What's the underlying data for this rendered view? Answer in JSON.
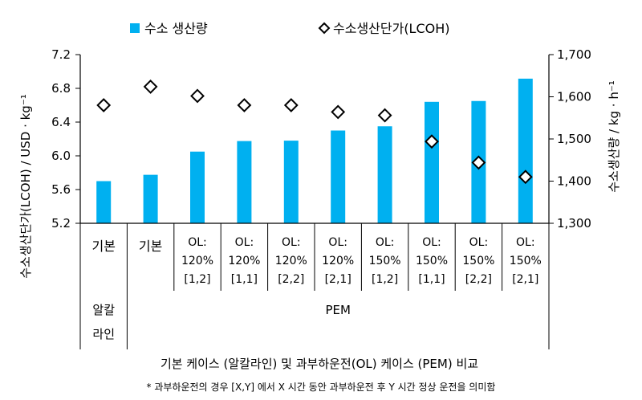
{
  "chart_data": {
    "type": "bar",
    "legend": {
      "bar_label": "수소 생산량",
      "marker_label": "수소생산단가(LCOH)",
      "position": "top"
    },
    "categories": [
      {
        "lines": [
          "기본"
        ]
      },
      {
        "lines": [
          "기본"
        ]
      },
      {
        "lines": [
          "OL:",
          "120%",
          "[1,2]"
        ]
      },
      {
        "lines": [
          "OL:",
          "120%",
          "[1,1]"
        ]
      },
      {
        "lines": [
          "OL:",
          "120%",
          "[2,2]"
        ]
      },
      {
        "lines": [
          "OL:",
          "120%",
          "[2,1]"
        ]
      },
      {
        "lines": [
          "OL:",
          "150%",
          "[1,2]"
        ]
      },
      {
        "lines": [
          "OL:",
          "150%",
          "[1,1]"
        ]
      },
      {
        "lines": [
          "OL:",
          "150%",
          "[2,2]"
        ]
      },
      {
        "lines": [
          "OL:",
          "150%",
          "[2,1]"
        ]
      }
    ],
    "groups": [
      {
        "label_lines": [
          "알칼",
          "라인"
        ],
        "span": [
          0,
          0
        ]
      },
      {
        "label_lines": [
          "PEM"
        ],
        "span": [
          1,
          9
        ]
      }
    ],
    "series": [
      {
        "name": "수소 생산량",
        "kind": "bar",
        "axis": "right",
        "color": "#00B0F0",
        "values": [
          1400,
          1415,
          1470,
          1495,
          1496,
          1520,
          1530,
          1588,
          1590,
          1643
        ]
      },
      {
        "name": "수소생산단가(LCOH)",
        "kind": "marker",
        "marker": "diamond",
        "axis": "left",
        "values": [
          6.6,
          6.82,
          6.71,
          6.6,
          6.6,
          6.52,
          6.48,
          6.17,
          5.92,
          5.75
        ]
      }
    ],
    "y_left": {
      "label": "수소생산단가(LCOH) / USD · kg⁻¹",
      "min": 5.2,
      "max": 7.2,
      "ticks": [
        "5.2",
        "5.6",
        "6.0",
        "6.4",
        "6.8",
        "7.2"
      ]
    },
    "y_right": {
      "label": "수소생산량 / kg · h⁻¹",
      "min": 1300,
      "max": 1700,
      "ticks": [
        "1,300",
        "1,400",
        "1,500",
        "1,600",
        "1,700"
      ]
    },
    "xlabel": "기본 케이스 (알칼라인) 및 과부하운전(OL) 케이스 (PEM) 비교",
    "footnote": "* 과부하운전의 경우 [X,Y] 에서  X 시간 동안 과부하운전 후 Y 시간 정상 운전을 의미함",
    "grid": false
  }
}
